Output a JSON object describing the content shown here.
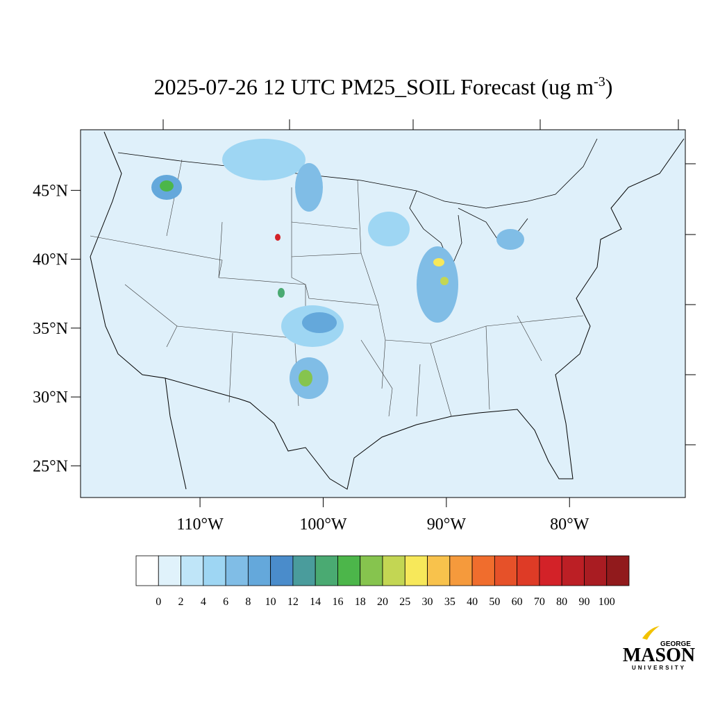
{
  "chart_data": {
    "type": "map",
    "title": {
      "main": "2025-07-26 12 UTC PM25_SOIL Forecast (ug m",
      "superscript": "-3",
      "close": ")"
    },
    "lonlim": [
      -119.7,
      -70.6
    ],
    "latlim": [
      22.7,
      49.4
    ],
    "lonticks": [
      {
        "value": -110,
        "label": "110°W"
      },
      {
        "value": -100,
        "label": "100°W"
      },
      {
        "value": -90,
        "label": "90°W"
      },
      {
        "value": -80,
        "label": "80°W"
      }
    ],
    "latticks": [
      {
        "value": 45,
        "label": "45°N"
      },
      {
        "value": 40,
        "label": "40°N"
      },
      {
        "value": 35,
        "label": "35°N"
      },
      {
        "value": 30,
        "label": "30°N"
      },
      {
        "value": 25,
        "label": "25°N"
      }
    ],
    "colorbar": {
      "levels": [
        0,
        2,
        4,
        6,
        8,
        10,
        12,
        14,
        16,
        18,
        20,
        25,
        30,
        35,
        40,
        50,
        60,
        70,
        80,
        90,
        100
      ],
      "colors": [
        "#ffffff",
        "#e0f2fb",
        "#bfe5f8",
        "#9ed6f3",
        "#80bde6",
        "#64a8db",
        "#4a8ccb",
        "#4a9c9c",
        "#4aaa72",
        "#4cb64a",
        "#86c44e",
        "#c3d653",
        "#f7e85a",
        "#f8c24c",
        "#f59a3c",
        "#f06d2d",
        "#e65129",
        "#de3b26",
        "#d32228",
        "#bc1f25",
        "#a91c22",
        "#911a1c"
      ]
    },
    "logo": {
      "top": "GEORGE",
      "main": "MASON",
      "bottom": "UNIVERSITY"
    }
  }
}
